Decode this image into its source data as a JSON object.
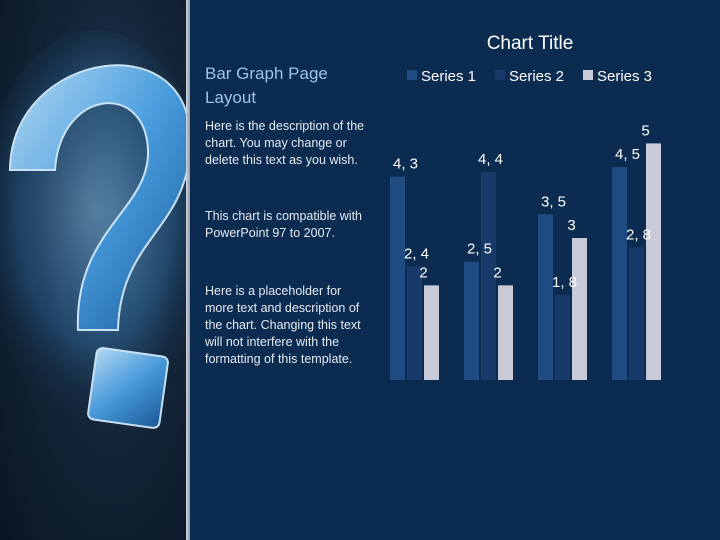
{
  "slide": {
    "heading": "Bar Graph Page Layout",
    "paragraphs": [
      "Here is the description of the chart.  You may change or delete this text as you wish.",
      "This chart is compatible with PowerPoint 97 to 2007.",
      "Here is a placeholder for more text and description of the chart.  Changing this text will not interfere with the formatting of this template."
    ],
    "hero_icon": "question-mark-icon"
  },
  "colors": {
    "background": "#0c2b50",
    "series1": "#1f4b83",
    "series2": "#173a6b",
    "series3": "#c9cad8",
    "text": "#ffffff",
    "accent": "#4aa6e6"
  },
  "chart_data": {
    "type": "bar",
    "title": "Chart Title",
    "categories": [
      "",
      "",
      "",
      ""
    ],
    "series": [
      {
        "name": "Series 1",
        "values": [
          4.3,
          2.5,
          3.5,
          4.5
        ],
        "labels": [
          "4, 3",
          "2, 5",
          "3, 5",
          "4, 5"
        ]
      },
      {
        "name": "Series 2",
        "values": [
          2.4,
          4.4,
          1.8,
          2.8
        ],
        "labels": [
          "2, 4",
          "4, 4",
          "1, 8",
          "2, 8"
        ]
      },
      {
        "name": "Series 3",
        "values": [
          2,
          2,
          3,
          5
        ],
        "labels": [
          "2",
          "2",
          "3",
          "5"
        ]
      }
    ],
    "ylim": [
      0,
      5.6
    ],
    "grid": false,
    "legend": "top"
  }
}
